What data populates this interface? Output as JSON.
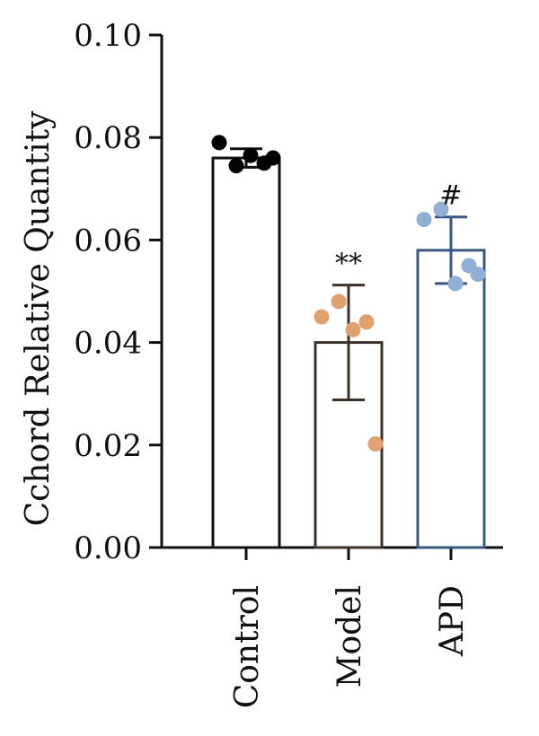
{
  "chart_data": {
    "type": "bar",
    "title": "",
    "xlabel": "",
    "ylabel": "Cchord Relative Quantity",
    "ylim": [
      0,
      0.1
    ],
    "yticks": [
      "0.00",
      "0.02",
      "0.04",
      "0.06",
      "0.08",
      "0.10"
    ],
    "categories": [
      "Control",
      "Model",
      "APD"
    ],
    "values": [
      0.076,
      0.04,
      0.058
    ],
    "errors": [
      0.0018,
      0.0112,
      0.0065
    ],
    "points": [
      [
        0.079,
        0.0745,
        0.0765,
        0.075,
        0.076
      ],
      [
        0.045,
        0.048,
        0.0425,
        0.044,
        0.0202
      ],
      [
        0.064,
        0.066,
        0.0515,
        0.055,
        0.0533
      ]
    ],
    "significance": [
      "",
      "**",
      "#"
    ],
    "colors": {
      "Control": "#111111",
      "Model": "#3d3128",
      "APD": "#355a8a",
      "Control_points": "#000000",
      "Model_points": "#e1a16e",
      "APD_points": "#8fb0d2"
    },
    "grid": false,
    "legend": "none"
  }
}
